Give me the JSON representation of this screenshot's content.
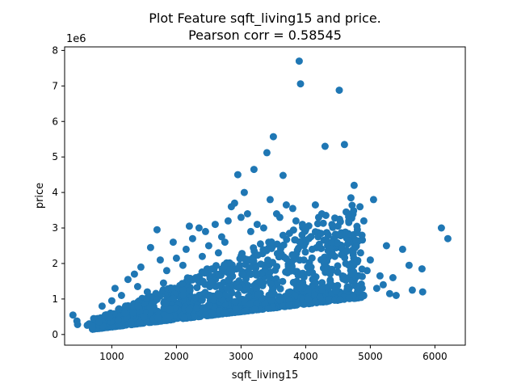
{
  "chart_data": {
    "type": "scatter",
    "title": [
      "Plot Feature sqft_living15 and price.",
      "Pearson corr = 0.58545"
    ],
    "xlabel": "sqft_living15",
    "ylabel": "price",
    "y_scale_label": "1e6",
    "xlim": [
      270,
      6470
    ],
    "ylim": [
      -0.3,
      8.1
    ],
    "xticks": [
      1000,
      2000,
      3000,
      4000,
      5000,
      6000
    ],
    "xtick_labels": [
      "1000",
      "2000",
      "3000",
      "4000",
      "5000",
      "6000"
    ],
    "yticks": [
      0,
      1,
      2,
      3,
      4,
      5,
      6,
      7,
      8
    ],
    "ytick_labels": [
      "0",
      "1",
      "2",
      "3",
      "4",
      "5",
      "6",
      "7",
      "8"
    ],
    "grid": false,
    "point_color": "#1f77b4",
    "points": [
      [
        399,
        0.55
      ],
      [
        460,
        0.38
      ],
      [
        470,
        0.28
      ],
      [
        620,
        0.26
      ],
      [
        650,
        0.3
      ],
      [
        700,
        0.22
      ],
      [
        720,
        0.45
      ],
      [
        800,
        0.35
      ],
      [
        850,
        0.8
      ],
      [
        900,
        0.55
      ],
      [
        1000,
        0.95
      ],
      [
        1050,
        1.3
      ],
      [
        1100,
        0.4
      ],
      [
        1150,
        1.1
      ],
      [
        1200,
        0.6
      ],
      [
        1250,
        1.55
      ],
      [
        1300,
        0.35
      ],
      [
        1350,
        1.7
      ],
      [
        1400,
        1.35
      ],
      [
        1450,
        1.9
      ],
      [
        1500,
        0.5
      ],
      [
        1550,
        1.2
      ],
      [
        1600,
        2.45
      ],
      [
        1700,
        2.95
      ],
      [
        1750,
        2.1
      ],
      [
        1800,
        1.45
      ],
      [
        1850,
        1.8
      ],
      [
        1900,
        0.7
      ],
      [
        1950,
        2.6
      ],
      [
        2000,
        2.15
      ],
      [
        2100,
        1.95
      ],
      [
        2150,
        2.4
      ],
      [
        2200,
        3.05
      ],
      [
        2250,
        2.7
      ],
      [
        2300,
        1.6
      ],
      [
        2350,
        3.0
      ],
      [
        2400,
        2.2
      ],
      [
        2450,
        2.9
      ],
      [
        2500,
        2.5
      ],
      [
        2550,
        1.85
      ],
      [
        2600,
        3.1
      ],
      [
        2650,
        2.3
      ],
      [
        2700,
        2.75
      ],
      [
        2750,
        2.6
      ],
      [
        2800,
        3.2
      ],
      [
        2850,
        3.6
      ],
      [
        2900,
        3.7
      ],
      [
        2950,
        4.5
      ],
      [
        3000,
        3.3
      ],
      [
        3050,
        4.0
      ],
      [
        3100,
        3.4
      ],
      [
        3150,
        2.9
      ],
      [
        3200,
        4.65
      ],
      [
        3250,
        3.1
      ],
      [
        3300,
        2.55
      ],
      [
        3350,
        3.0
      ],
      [
        3400,
        5.12
      ],
      [
        3450,
        3.8
      ],
      [
        3500,
        5.57
      ],
      [
        3550,
        3.4
      ],
      [
        3600,
        3.3
      ],
      [
        3650,
        4.48
      ],
      [
        3700,
        3.65
      ],
      [
        3750,
        2.85
      ],
      [
        3800,
        3.55
      ],
      [
        3850,
        3.2
      ],
      [
        3900,
        7.7
      ],
      [
        3920,
        7.06
      ],
      [
        3950,
        3.1
      ],
      [
        4000,
        2.95
      ],
      [
        4050,
        2.7
      ],
      [
        4100,
        2.4
      ],
      [
        4150,
        3.65
      ],
      [
        4200,
        3.3
      ],
      [
        4250,
        3.4
      ],
      [
        4300,
        5.3
      ],
      [
        4350,
        2.8
      ],
      [
        4400,
        2.6
      ],
      [
        4450,
        2.2
      ],
      [
        4500,
        3.05
      ],
      [
        4520,
        6.88
      ],
      [
        4600,
        5.35
      ],
      [
        4650,
        2.55
      ],
      [
        4700,
        3.85
      ],
      [
        4750,
        4.2
      ],
      [
        4800,
        2.95
      ],
      [
        4850,
        2.3
      ],
      [
        4900,
        3.2
      ],
      [
        4950,
        1.8
      ],
      [
        5000,
        2.1
      ],
      [
        5050,
        3.8
      ],
      [
        5100,
        1.3
      ],
      [
        5150,
        1.65
      ],
      [
        5200,
        1.4
      ],
      [
        5250,
        2.5
      ],
      [
        5300,
        1.15
      ],
      [
        5350,
        1.6
      ],
      [
        5400,
        1.1
      ],
      [
        5500,
        2.4
      ],
      [
        5600,
        1.95
      ],
      [
        5650,
        1.25
      ],
      [
        5800,
        1.85
      ],
      [
        5810,
        1.2
      ],
      [
        6100,
        3.0
      ],
      [
        6200,
        2.7
      ]
    ]
  }
}
